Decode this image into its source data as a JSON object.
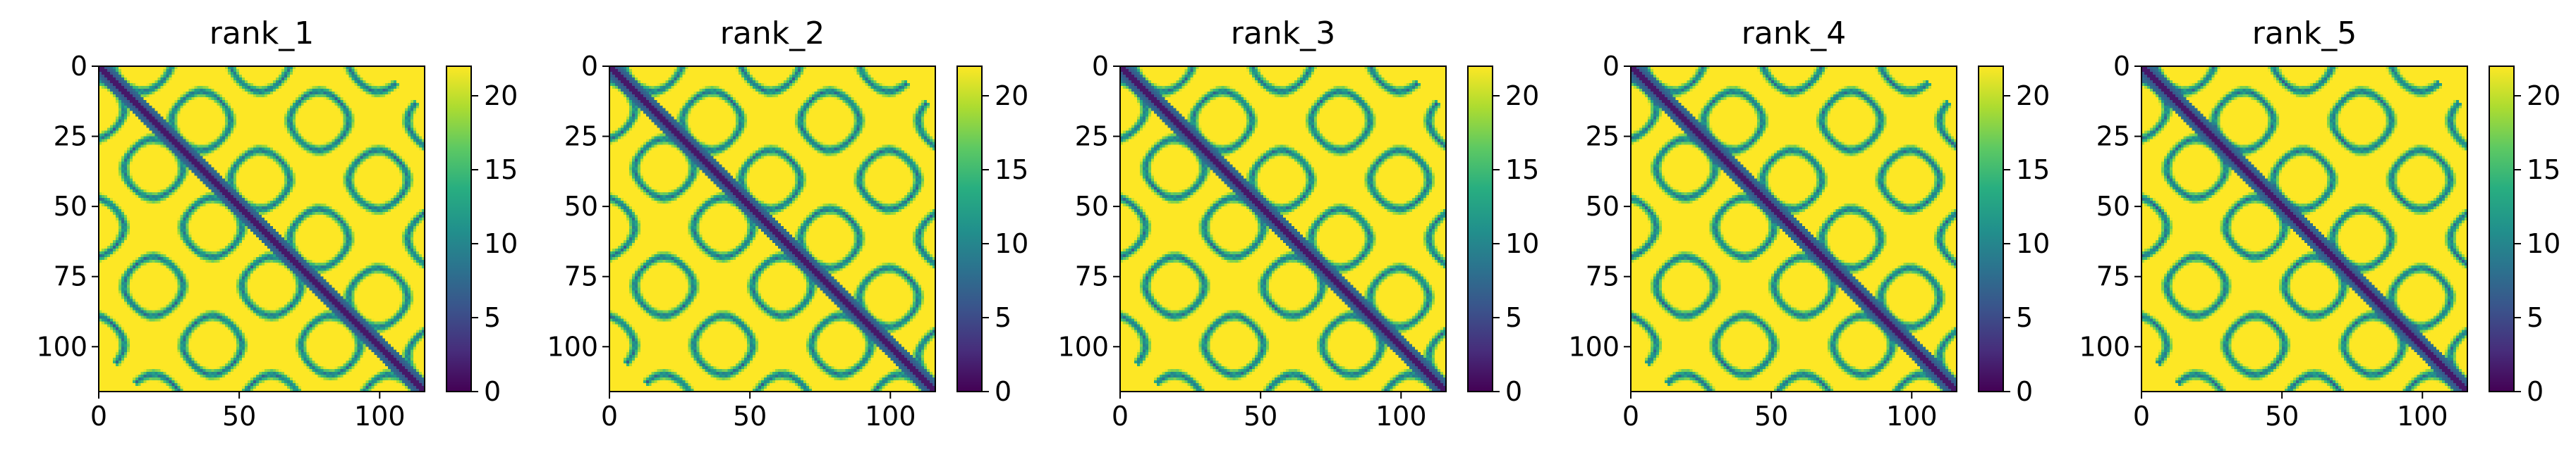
{
  "chart_data": [
    {
      "type": "heatmap",
      "title": "rank_1",
      "xlim": [
        0,
        116
      ],
      "ylim": [
        116,
        0
      ],
      "xticks": [
        0,
        50,
        100
      ],
      "yticks": [
        0,
        25,
        50,
        75,
        100
      ],
      "colorbar": {
        "min": 0,
        "max": 22,
        "ticks": [
          0,
          5,
          10,
          15,
          20
        ]
      }
    },
    {
      "type": "heatmap",
      "title": "rank_2",
      "xlim": [
        0,
        116
      ],
      "ylim": [
        116,
        0
      ],
      "xticks": [
        0,
        50,
        100
      ],
      "yticks": [
        0,
        25,
        50,
        75,
        100
      ],
      "colorbar": {
        "min": 0,
        "max": 22,
        "ticks": [
          0,
          5,
          10,
          15,
          20
        ]
      }
    },
    {
      "type": "heatmap",
      "title": "rank_3",
      "xlim": [
        0,
        116
      ],
      "ylim": [
        116,
        0
      ],
      "xticks": [
        0,
        50,
        100
      ],
      "yticks": [
        0,
        25,
        50,
        75,
        100
      ],
      "colorbar": {
        "min": 0,
        "max": 22,
        "ticks": [
          0,
          5,
          10,
          15,
          20
        ]
      }
    },
    {
      "type": "heatmap",
      "title": "rank_4",
      "xlim": [
        0,
        116
      ],
      "ylim": [
        116,
        0
      ],
      "xticks": [
        0,
        50,
        100
      ],
      "yticks": [
        0,
        25,
        50,
        75,
        100
      ],
      "colorbar": {
        "min": 0,
        "max": 22,
        "ticks": [
          0,
          5,
          10,
          15,
          20
        ]
      }
    },
    {
      "type": "heatmap",
      "title": "rank_5",
      "xlim": [
        0,
        116
      ],
      "ylim": [
        116,
        0
      ],
      "xticks": [
        0,
        50,
        100
      ],
      "yticks": [
        0,
        25,
        50,
        75,
        100
      ],
      "colorbar": {
        "min": 0,
        "max": 22,
        "ticks": [
          0,
          5,
          10,
          15,
          20
        ]
      }
    }
  ],
  "colormap": "viridis",
  "colors": {
    "low": "#440154",
    "mid": "#21918c",
    "high": "#fde725"
  }
}
